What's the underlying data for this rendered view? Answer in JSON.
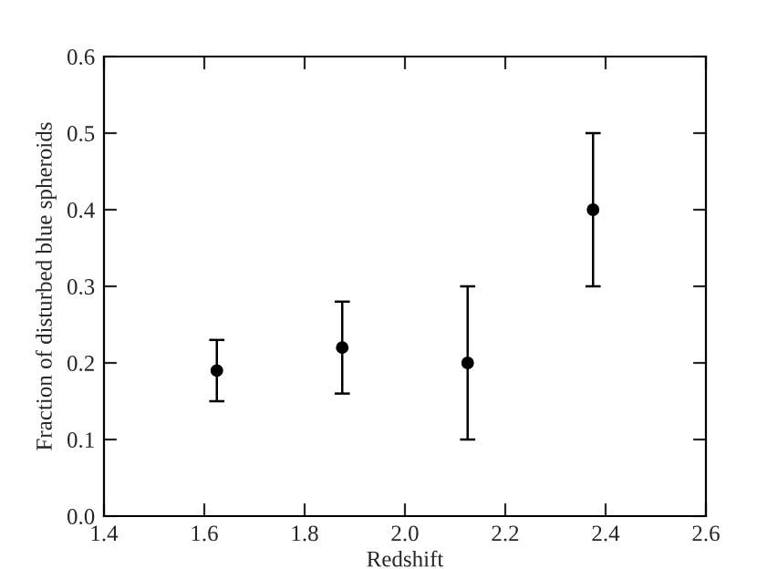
{
  "chart_data": {
    "type": "scatter",
    "xlabel": "Redshift",
    "ylabel": "Fraction of disturbed blue spheroids",
    "x": [
      1.625,
      1.875,
      2.125,
      2.375
    ],
    "series": [
      {
        "color": "#000000",
        "values": [
          0.19,
          0.22,
          0.2,
          0.4
        ],
        "errors": [
          0.04,
          0.06,
          0.1,
          0.1
        ]
      }
    ],
    "marker": "circle",
    "grid": false,
    "legend": false,
    "xlim": [
      1.4,
      2.6
    ],
    "xticks": [
      1.4,
      1.6,
      1.8,
      {
        "value": 2,
        "label": "2.0"
      },
      2.2,
      2.4,
      2.6
    ],
    "ylim": [
      0,
      0.6
    ],
    "yticks": [
      {
        "value": 0,
        "label": "0.0"
      },
      0.1,
      0.2,
      0.3,
      0.4,
      0.5,
      0.6
    ]
  }
}
